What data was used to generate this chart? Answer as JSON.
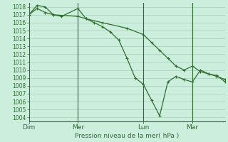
{
  "background_color": "#cceedd",
  "grid_color": "#aaccbb",
  "line_color": "#2d6e2d",
  "marker_color": "#2d6e2d",
  "xlabel_text": "Pression niveau de la mer( hPa )",
  "ylim": [
    1003.5,
    1018.5
  ],
  "yticks": [
    1004,
    1005,
    1006,
    1007,
    1008,
    1009,
    1010,
    1011,
    1012,
    1013,
    1014,
    1015,
    1016,
    1017,
    1018
  ],
  "xtick_labels": [
    "Dim",
    "Mer",
    "Lun",
    "Mar"
  ],
  "xtick_positions": [
    0,
    24,
    56,
    80
  ],
  "xlim": [
    0,
    96
  ],
  "vlines": [
    0,
    24,
    56,
    80
  ],
  "series1_x": [
    0,
    4,
    8,
    12,
    16,
    24,
    28,
    32,
    36,
    40,
    44,
    48,
    52,
    56,
    60,
    64,
    68,
    72,
    76,
    80,
    84,
    88,
    92,
    96
  ],
  "series1_y": [
    1017.0,
    1017.8,
    1017.3,
    1017.0,
    1016.8,
    1017.8,
    1016.5,
    1016.0,
    1015.5,
    1014.8,
    1013.8,
    1011.5,
    1009.0,
    1008.2,
    1006.2,
    1004.2,
    1008.5,
    1009.2,
    1008.8,
    1008.5,
    1010.0,
    1009.5,
    1009.3,
    1008.5
  ],
  "series2_x": [
    0,
    4,
    8,
    12,
    24,
    28,
    36,
    48,
    56,
    60,
    64,
    68,
    72,
    76,
    80,
    84,
    88,
    92,
    96
  ],
  "series2_y": [
    1017.0,
    1018.2,
    1018.0,
    1017.0,
    1016.8,
    1016.5,
    1016.0,
    1015.3,
    1014.5,
    1013.5,
    1012.5,
    1011.5,
    1010.5,
    1010.0,
    1010.5,
    1009.8,
    1009.5,
    1009.2,
    1008.8
  ]
}
